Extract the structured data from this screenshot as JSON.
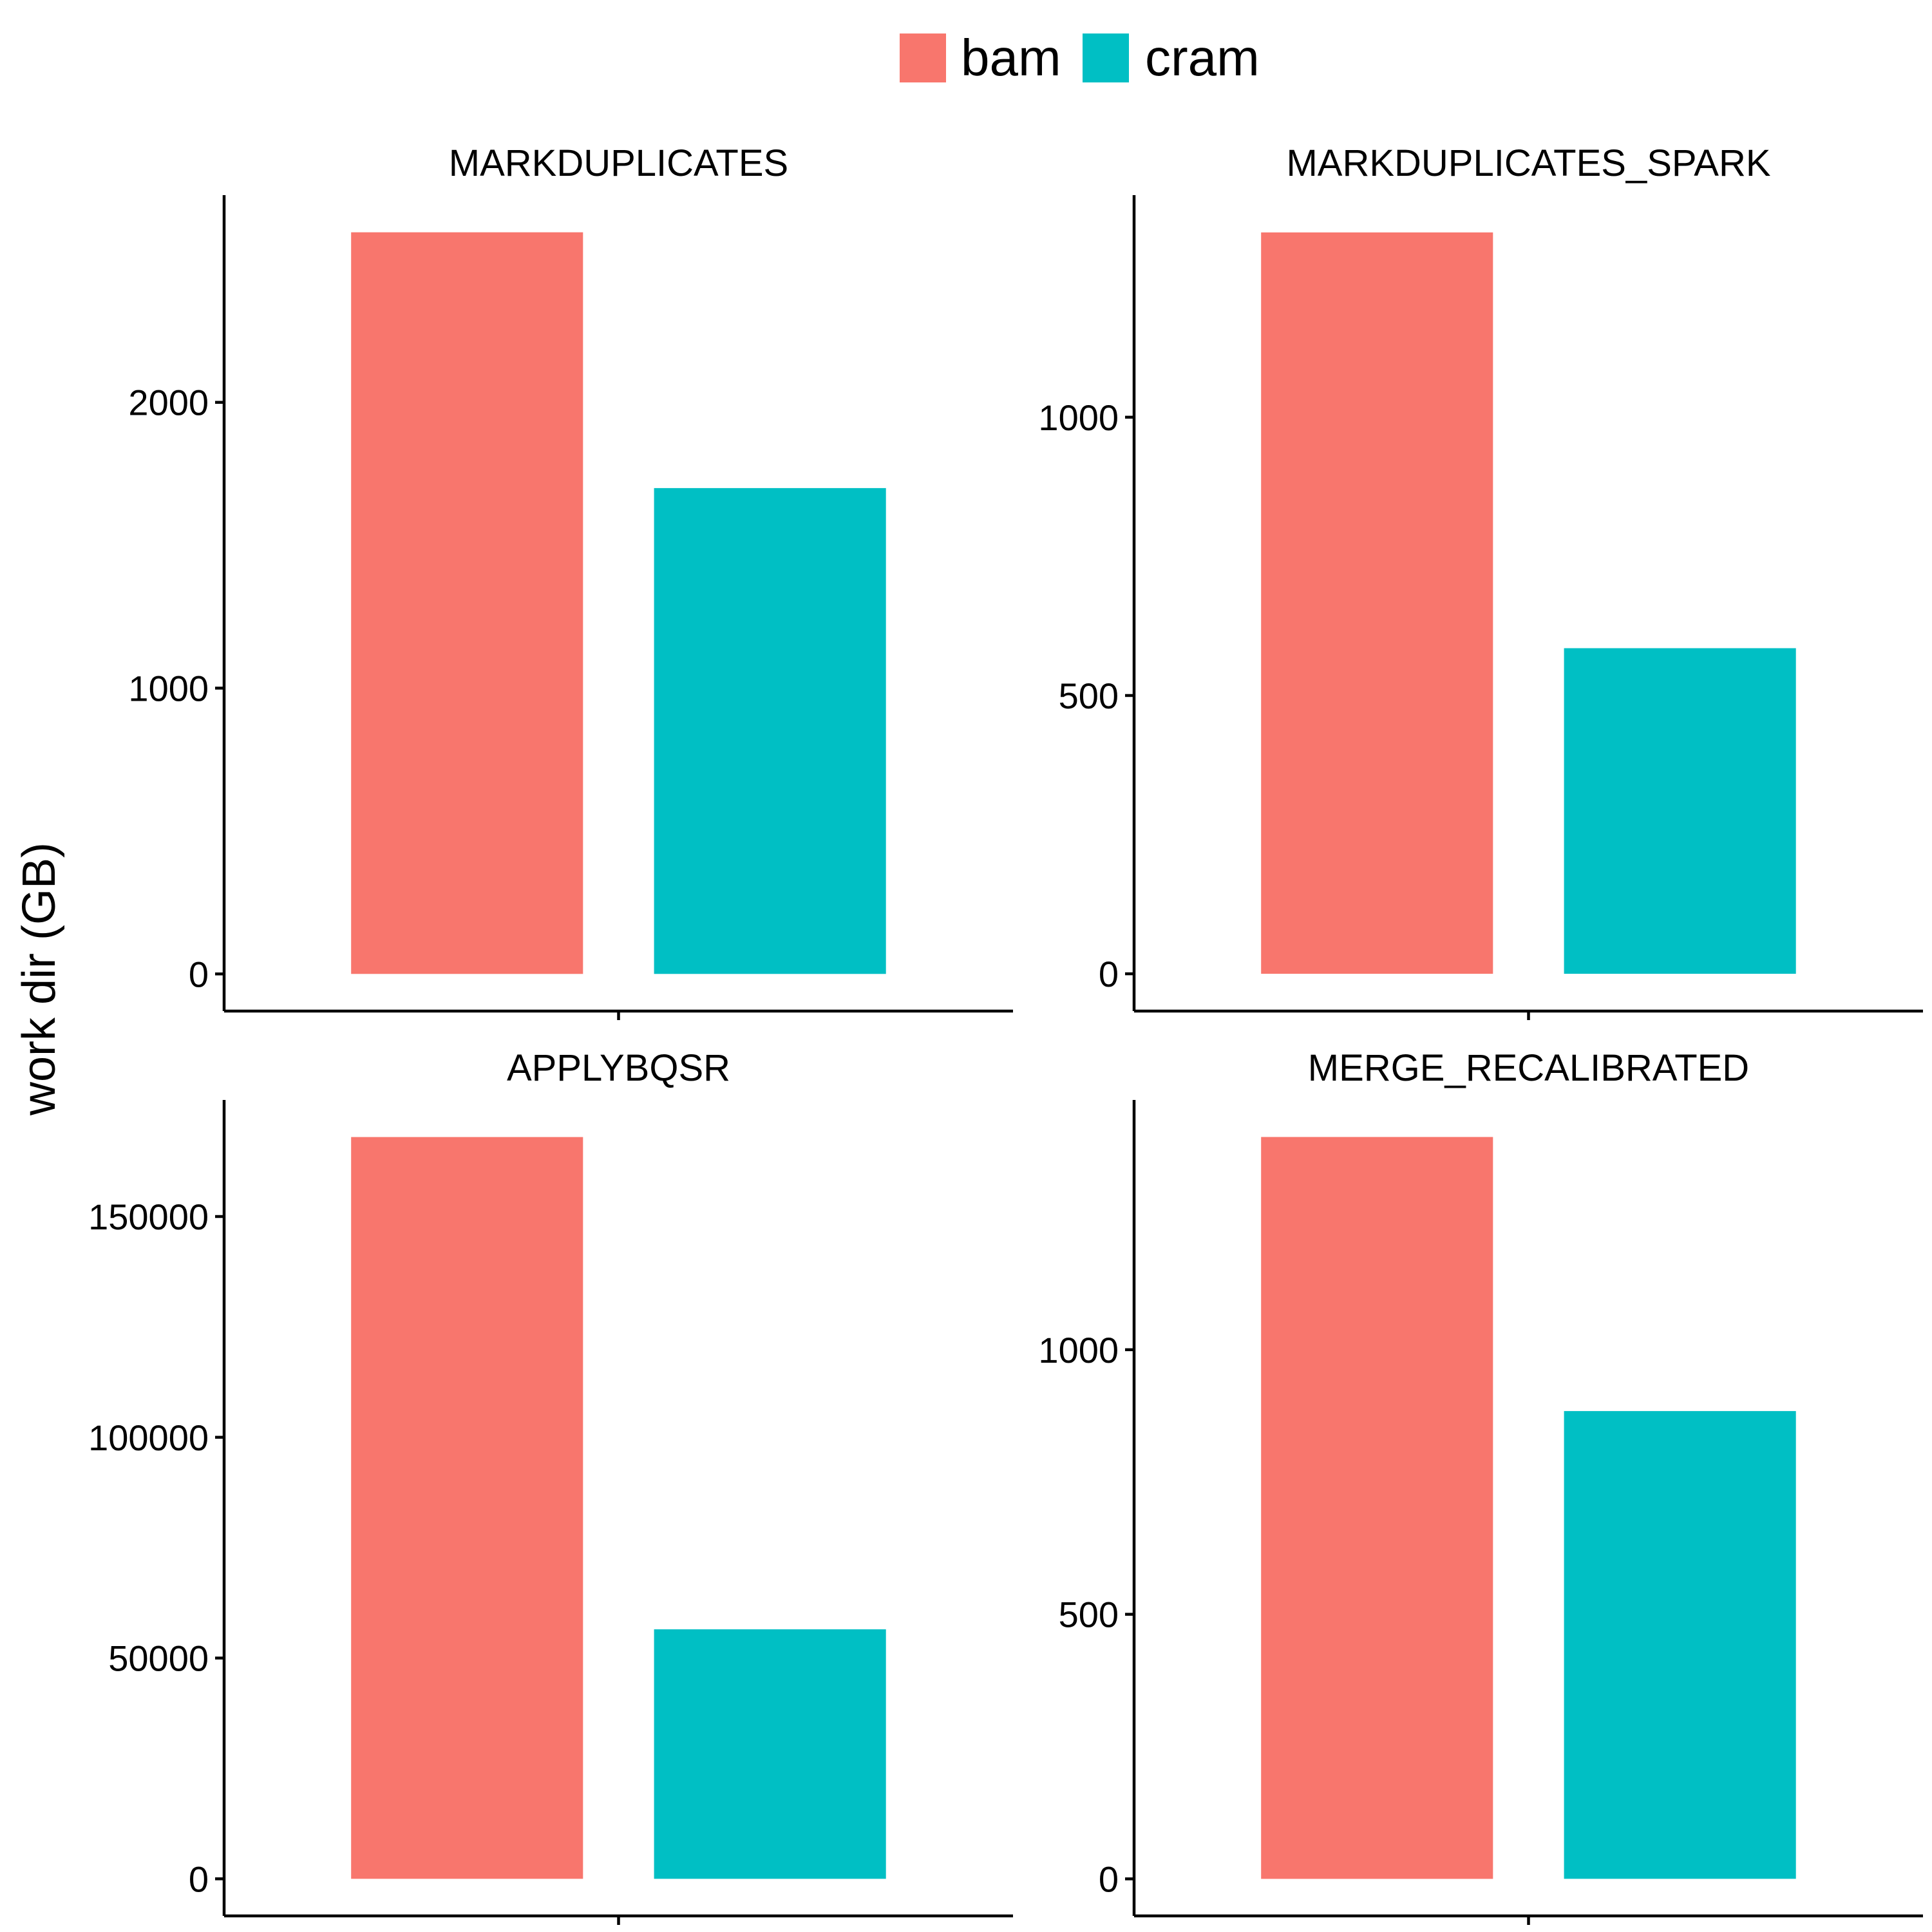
{
  "legend": {
    "items": [
      {
        "label": "bam",
        "color": "#F8766D"
      },
      {
        "label": "cram",
        "color": "#00BFC4"
      }
    ]
  },
  "ylabel": "work dir (GB)",
  "chart_data": {
    "type": "bar",
    "layout": "facet-grid-2x2",
    "ylabel": "work dir (GB)",
    "legend_position": "top",
    "grid": false,
    "series_names": [
      "bam",
      "cram"
    ],
    "colors": {
      "bam": "#F8766D",
      "cram": "#00BFC4"
    },
    "panels": [
      {
        "title": "MARKDUPLICATES",
        "values": {
          "bam": 2595,
          "cram": 1700
        },
        "ylim": [
          -130,
          2725
        ],
        "yticks": [
          0,
          1000,
          2000
        ],
        "ytick_labels": [
          "0",
          "1000",
          "2000"
        ]
      },
      {
        "title": "MARKDUPLICATES_SPARK",
        "values": {
          "bam": 1332,
          "cram": 585
        },
        "ylim": [
          -67,
          1399
        ],
        "yticks": [
          0,
          500,
          1000
        ],
        "ytick_labels": [
          "0",
          "500",
          "1000"
        ]
      },
      {
        "title": "APPLYBQSR",
        "values": {
          "bam": 168000,
          "cram": 56500
        },
        "ylim": [
          -8400,
          176400
        ],
        "yticks": [
          0,
          50000,
          100000,
          150000
        ],
        "ytick_labels": [
          "0",
          "50000",
          "100000",
          "150000"
        ]
      },
      {
        "title": "MERGE_RECALIBRATED",
        "values": {
          "bam": 1402,
          "cram": 884
        },
        "ylim": [
          -70,
          1472
        ],
        "yticks": [
          0,
          500,
          1000
        ],
        "ytick_labels": [
          "0",
          "500",
          "1000"
        ]
      }
    ]
  }
}
